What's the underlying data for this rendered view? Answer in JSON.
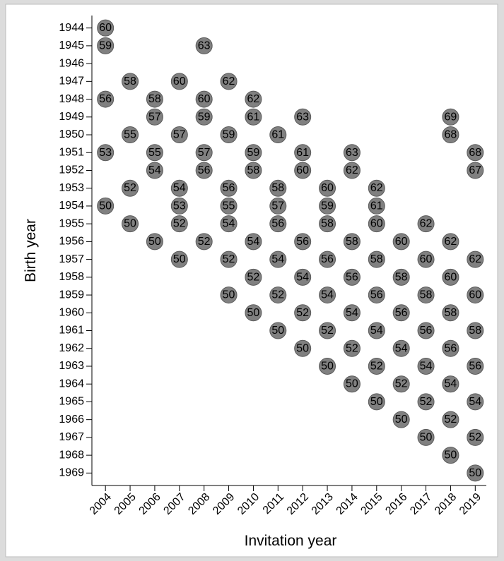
{
  "chart_data": {
    "type": "scatter",
    "x_label": "Invitation year",
    "y_label": "Birth year",
    "x": [
      2004,
      2004,
      2008,
      2005,
      2007,
      2009,
      2004,
      2006,
      2008,
      2010,
      2006,
      2008,
      2010,
      2012,
      2018,
      2005,
      2007,
      2009,
      2011,
      2018,
      2004,
      2006,
      2008,
      2010,
      2012,
      2014,
      2019,
      2006,
      2008,
      2010,
      2012,
      2014,
      2019,
      2005,
      2007,
      2009,
      2011,
      2013,
      2015,
      2004,
      2007,
      2009,
      2011,
      2013,
      2015,
      2005,
      2007,
      2009,
      2011,
      2013,
      2015,
      2017,
      2006,
      2008,
      2010,
      2012,
      2014,
      2016,
      2018,
      2007,
      2009,
      2011,
      2013,
      2015,
      2017,
      2019,
      2010,
      2012,
      2014,
      2016,
      2018,
      2009,
      2011,
      2013,
      2015,
      2017,
      2019,
      2010,
      2012,
      2014,
      2016,
      2018,
      2011,
      2013,
      2015,
      2017,
      2019,
      2012,
      2014,
      2016,
      2018,
      2013,
      2015,
      2017,
      2019,
      2014,
      2016,
      2018,
      2015,
      2017,
      2019,
      2016,
      2018,
      2017,
      2019,
      2018,
      2019
    ],
    "values": [
      1944,
      1945,
      1945,
      1947,
      1947,
      1947,
      1948,
      1948,
      1948,
      1948,
      1949,
      1949,
      1949,
      1949,
      1949,
      1950,
      1950,
      1950,
      1950,
      1950,
      1951,
      1951,
      1951,
      1951,
      1951,
      1951,
      1951,
      1952,
      1952,
      1952,
      1952,
      1952,
      1952,
      1953,
      1953,
      1953,
      1953,
      1953,
      1953,
      1954,
      1954,
      1954,
      1954,
      1954,
      1954,
      1955,
      1955,
      1955,
      1955,
      1955,
      1955,
      1955,
      1956,
      1956,
      1956,
      1956,
      1956,
      1956,
      1956,
      1957,
      1957,
      1957,
      1957,
      1957,
      1957,
      1957,
      1958,
      1958,
      1958,
      1958,
      1958,
      1959,
      1959,
      1959,
      1959,
      1959,
      1959,
      1960,
      1960,
      1960,
      1960,
      1960,
      1961,
      1961,
      1961,
      1961,
      1961,
      1962,
      1962,
      1962,
      1962,
      1963,
      1963,
      1963,
      1963,
      1964,
      1964,
      1964,
      1965,
      1965,
      1965,
      1966,
      1966,
      1967,
      1967,
      1968,
      1969
    ],
    "labels": [
      60,
      59,
      63,
      58,
      60,
      62,
      56,
      58,
      60,
      62,
      57,
      59,
      61,
      63,
      69,
      55,
      57,
      59,
      61,
      68,
      53,
      55,
      57,
      59,
      61,
      63,
      68,
      54,
      56,
      58,
      60,
      62,
      67,
      52,
      54,
      56,
      58,
      60,
      62,
      50,
      53,
      55,
      57,
      59,
      61,
      50,
      52,
      54,
      56,
      58,
      60,
      62,
      50,
      52,
      54,
      56,
      58,
      60,
      62,
      50,
      52,
      54,
      56,
      58,
      60,
      62,
      52,
      54,
      56,
      58,
      60,
      50,
      52,
      54,
      56,
      58,
      60,
      50,
      52,
      54,
      56,
      58,
      50,
      52,
      54,
      56,
      58,
      50,
      52,
      54,
      56,
      50,
      52,
      54,
      56,
      50,
      52,
      54,
      50,
      52,
      54,
      50,
      52,
      50,
      52,
      50,
      50
    ],
    "color": "#808080",
    "xlim": [
      2003.45,
      2019.45
    ],
    "xticks": [
      2004,
      2005,
      2006,
      2007,
      2008,
      2009,
      2010,
      2011,
      2012,
      2013,
      2014,
      2015,
      2016,
      2017,
      2018,
      2019
    ],
    "ylim": [
      1969.7,
      1943.3
    ],
    "yticks": [
      1944,
      1945,
      1946,
      1947,
      1948,
      1949,
      1950,
      1951,
      1952,
      1953,
      1954,
      1955,
      1956,
      1957,
      1958,
      1959,
      1960,
      1961,
      1962,
      1963,
      1964,
      1965,
      1966,
      1967,
      1968,
      1969
    ],
    "grid": false
  }
}
